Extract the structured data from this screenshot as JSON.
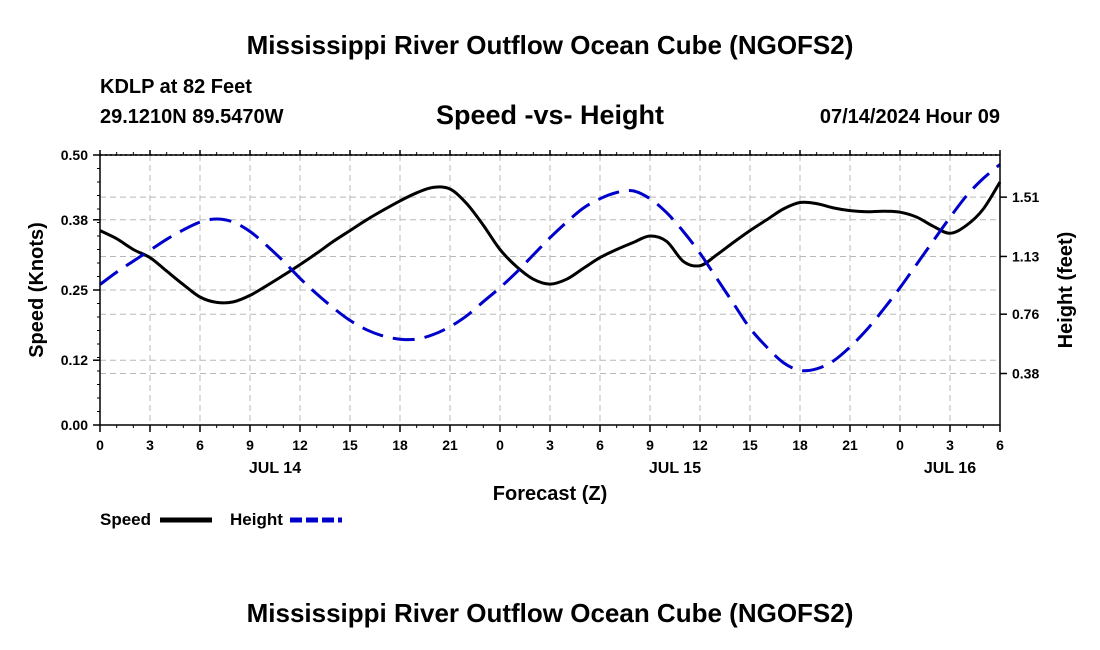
{
  "header": {
    "title": "Mississippi River Outflow Ocean Cube (NGOFS2)",
    "station": "KDLP at 82 Feet",
    "coords": "29.1210N  89.5470W",
    "subtitle": "Speed -vs- Height",
    "datetime": "07/14/2024 Hour 09"
  },
  "footer": {
    "title": "Mississippi River Outflow Ocean Cube (NGOFS2)"
  },
  "chart_data": {
    "type": "line",
    "title": "Speed -vs- Height",
    "xlabel": "Forecast (Z)",
    "ylabel_left": "Speed (Knots)",
    "ylabel_right": "Height (feet)",
    "x_range_hours": [
      0,
      54
    ],
    "x_ticks": [
      {
        "h": 0,
        "label": "0"
      },
      {
        "h": 3,
        "label": "3"
      },
      {
        "h": 6,
        "label": "6"
      },
      {
        "h": 9,
        "label": "9"
      },
      {
        "h": 12,
        "label": "12"
      },
      {
        "h": 15,
        "label": "15"
      },
      {
        "h": 18,
        "label": "18"
      },
      {
        "h": 21,
        "label": "21"
      },
      {
        "h": 24,
        "label": "0"
      },
      {
        "h": 27,
        "label": "3"
      },
      {
        "h": 30,
        "label": "6"
      },
      {
        "h": 33,
        "label": "9"
      },
      {
        "h": 36,
        "label": "12"
      },
      {
        "h": 39,
        "label": "15"
      },
      {
        "h": 42,
        "label": "18"
      },
      {
        "h": 45,
        "label": "21"
      },
      {
        "h": 48,
        "label": "0"
      },
      {
        "h": 51,
        "label": "3"
      },
      {
        "h": 54,
        "label": "6"
      }
    ],
    "date_labels": [
      {
        "h": 10.5,
        "label": "JUL 14"
      },
      {
        "h": 34.5,
        "label": "JUL 15"
      },
      {
        "h": 51.0,
        "label": "JUL 16"
      }
    ],
    "left_axis": {
      "min": 0,
      "max": 0.5,
      "ticks": [
        0.0,
        0.12,
        0.25,
        0.38,
        0.5
      ],
      "tick_labels": [
        "0.00",
        "0.12",
        "0.25",
        "0.38",
        "0.50"
      ]
    },
    "right_axis": {
      "min": 0.05,
      "max": 1.78,
      "ticks": [
        0.38,
        0.76,
        1.13,
        1.51
      ],
      "tick_labels": [
        "0.38",
        "0.76",
        "1.13",
        "1.51"
      ]
    },
    "series": [
      {
        "name": "Speed",
        "axis": "left",
        "color": "#000000",
        "dash": "solid",
        "points": [
          [
            0,
            0.36
          ],
          [
            1,
            0.345
          ],
          [
            2,
            0.325
          ],
          [
            3,
            0.31
          ],
          [
            4,
            0.285
          ],
          [
            5,
            0.26
          ],
          [
            6,
            0.237
          ],
          [
            7,
            0.227
          ],
          [
            8,
            0.228
          ],
          [
            9,
            0.24
          ],
          [
            10,
            0.258
          ],
          [
            11,
            0.277
          ],
          [
            12,
            0.297
          ],
          [
            13,
            0.318
          ],
          [
            14,
            0.34
          ],
          [
            15,
            0.36
          ],
          [
            16,
            0.38
          ],
          [
            17,
            0.398
          ],
          [
            18,
            0.415
          ],
          [
            19,
            0.43
          ],
          [
            20,
            0.44
          ],
          [
            21,
            0.437
          ],
          [
            22,
            0.41
          ],
          [
            23,
            0.37
          ],
          [
            24,
            0.325
          ],
          [
            25,
            0.293
          ],
          [
            26,
            0.27
          ],
          [
            27,
            0.261
          ],
          [
            28,
            0.27
          ],
          [
            29,
            0.29
          ],
          [
            30,
            0.31
          ],
          [
            31,
            0.325
          ],
          [
            32,
            0.338
          ],
          [
            33,
            0.35
          ],
          [
            34,
            0.34
          ],
          [
            35,
            0.303
          ],
          [
            36,
            0.295
          ],
          [
            37,
            0.315
          ],
          [
            38,
            0.338
          ],
          [
            39,
            0.36
          ],
          [
            40,
            0.38
          ],
          [
            41,
            0.4
          ],
          [
            42,
            0.412
          ],
          [
            43,
            0.41
          ],
          [
            44,
            0.402
          ],
          [
            45,
            0.397
          ],
          [
            46,
            0.395
          ],
          [
            47,
            0.396
          ],
          [
            48,
            0.394
          ],
          [
            49,
            0.385
          ],
          [
            50,
            0.368
          ],
          [
            51,
            0.355
          ],
          [
            52,
            0.37
          ],
          [
            53,
            0.4
          ],
          [
            54,
            0.45
          ]
        ]
      },
      {
        "name": "Height",
        "axis": "right",
        "color": "#0000cc",
        "dash": "dashed",
        "points": [
          [
            0,
            0.95
          ],
          [
            1,
            1.03
          ],
          [
            2,
            1.1
          ],
          [
            3,
            1.17
          ],
          [
            4,
            1.24
          ],
          [
            5,
            1.3
          ],
          [
            6,
            1.35
          ],
          [
            7,
            1.37
          ],
          [
            8,
            1.35
          ],
          [
            9,
            1.29
          ],
          [
            10,
            1.2
          ],
          [
            11,
            1.1
          ],
          [
            12,
            0.99
          ],
          [
            13,
            0.89
          ],
          [
            14,
            0.8
          ],
          [
            15,
            0.72
          ],
          [
            16,
            0.66
          ],
          [
            17,
            0.62
          ],
          [
            18,
            0.6
          ],
          [
            19,
            0.6
          ],
          [
            20,
            0.63
          ],
          [
            21,
            0.68
          ],
          [
            22,
            0.75
          ],
          [
            23,
            0.84
          ],
          [
            24,
            0.93
          ],
          [
            25,
            1.03
          ],
          [
            26,
            1.14
          ],
          [
            27,
            1.25
          ],
          [
            28,
            1.35
          ],
          [
            29,
            1.44
          ],
          [
            30,
            1.5
          ],
          [
            31,
            1.54
          ],
          [
            32,
            1.55
          ],
          [
            33,
            1.5
          ],
          [
            34,
            1.41
          ],
          [
            35,
            1.29
          ],
          [
            36,
            1.15
          ],
          [
            37,
            0.99
          ],
          [
            38,
            0.83
          ],
          [
            39,
            0.67
          ],
          [
            40,
            0.55
          ],
          [
            41,
            0.45
          ],
          [
            42,
            0.4
          ],
          [
            43,
            0.41
          ],
          [
            44,
            0.46
          ],
          [
            45,
            0.55
          ],
          [
            46,
            0.66
          ],
          [
            47,
            0.79
          ],
          [
            48,
            0.93
          ],
          [
            49,
            1.08
          ],
          [
            50,
            1.23
          ],
          [
            51,
            1.38
          ],
          [
            52,
            1.52
          ],
          [
            53,
            1.63
          ],
          [
            54,
            1.72
          ]
        ]
      }
    ],
    "legend": [
      {
        "label": "Speed",
        "color": "#000000",
        "dash": "solid"
      },
      {
        "label": "Height",
        "color": "#0000cc",
        "dash": "dashed"
      }
    ],
    "grid": true,
    "legend_position": "bottom-left"
  }
}
